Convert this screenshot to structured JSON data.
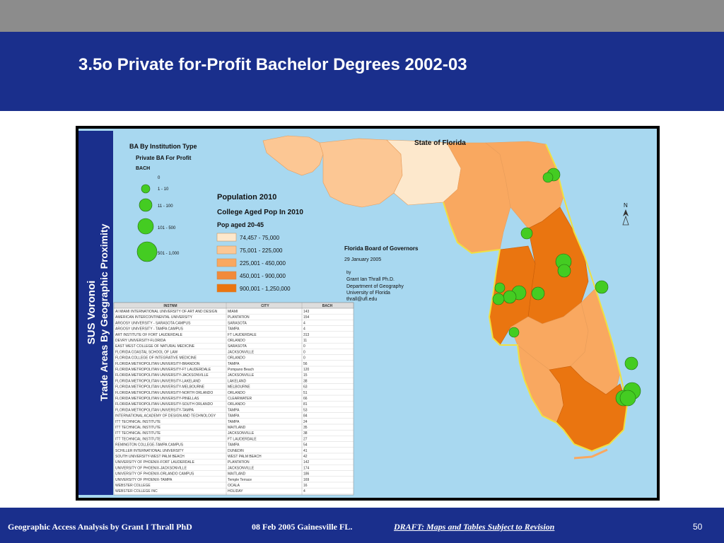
{
  "slide": {
    "title": "3.5o Private for-Profit Bachelor Degrees 2002-03",
    "page_number": "50"
  },
  "footer": {
    "left": "Geographic Access Analysis by Grant I Thrall PhD",
    "date": "08 Feb 2005  Gainesville FL.",
    "draft": "DRAFT:  Maps and Tables Subject to Revision"
  },
  "sidebar": {
    "line1": "SUS Voronoi",
    "line2": "Trade Areas By Geographic Proximity"
  },
  "map": {
    "state_label": "State of Florida",
    "north_arrow": "N",
    "ocean_color": "#a8d8f0",
    "legend_ba": {
      "title": "BA By Institution Type",
      "subtitle": "Private BA For Profit",
      "field": "BACH",
      "classes": [
        "0",
        "1 - 10",
        "11 - 100",
        "101 - 500",
        "501 - 1,000"
      ],
      "symbol_color": "#44cc22"
    },
    "legend_pop": {
      "title": "Population 2010",
      "subtitle": "College Aged Pop In 2010",
      "field": "Pop aged 20-45",
      "classes": [
        {
          "label": "74,457 - 75,000",
          "color": "#fde8cc"
        },
        {
          "label": "75,001 - 225,000",
          "color": "#fcc794"
        },
        {
          "label": "225,001 - 450,000",
          "color": "#f9a860"
        },
        {
          "label": "450,001 - 900,000",
          "color": "#f28a3a"
        },
        {
          "label": "900,001 - 1,250,000",
          "color": "#ea7510"
        }
      ]
    },
    "credits": {
      "org": "Florida Board of Governors",
      "date": "29 January 2005",
      "by": "by",
      "author": "Grant Ian Thrall Ph.D.",
      "dept": "Department of Geography",
      "univ": "University of Florida",
      "email": "thrall@ufl.edu"
    },
    "table": {
      "headers": [
        "INSTNM",
        "CITY",
        "BACH"
      ],
      "rows": [
        [
          "AI MIAMI INTERNATIONAL UNIVERSITY OF ART AND DESIGN",
          "MIAMI",
          "143"
        ],
        [
          "AMERICAN INTERCONTINENTAL UNIVERSITY",
          "PLANTATION",
          "154"
        ],
        [
          "ARGOSY UNIVERSITY - SARASOTA CAMPUS",
          "SARASOTA",
          "4"
        ],
        [
          "ARGOSY UNIVERSITY - TAMPA CAMPUS",
          "TAMPA",
          "4"
        ],
        [
          "ART INSTITUTE OF FORT LAUDERDALE",
          "FT LAUDERDALE",
          "313"
        ],
        [
          "DEVRY UNIVERSITY-FLORIDA",
          "ORLANDO",
          "11"
        ],
        [
          "EAST WEST COLLEGE OF NATURAL MEDICINE",
          "SARASOTA",
          "0"
        ],
        [
          "FLORIDA COASTAL SCHOOL OF LAW",
          "JACKSONVILLE",
          "0"
        ],
        [
          "FLORIDA COLLEGE OF INTEGRATIVE MEDICINE",
          "ORLANDO",
          "0"
        ],
        [
          "FLORIDA METROPOLITAN UNIVERSITY-BRANDON",
          "TAMPA",
          "56"
        ],
        [
          "FLORIDA METROPOLITAN UNIVERSITY-FT LAUDERDALE",
          "Pompano Beach",
          "120"
        ],
        [
          "FLORIDA METROPOLITAN UNIVERSITY-JACKSONVILLE",
          "JACKSONVILLE",
          "15"
        ],
        [
          "FLORIDA METROPOLITAN UNIVERSITY-LAKELAND",
          "LAKELAND",
          "38"
        ],
        [
          "FLORIDA METROPOLITAN UNIVERSITY-MELBOURNE",
          "MELBOURNE",
          "63"
        ],
        [
          "FLORIDA METROPOLITAN UNIVERSITY-NORTH ORLANDO",
          "ORLANDO",
          "51"
        ],
        [
          "FLORIDA METROPOLITAN UNIVERSITY-PINELLAS",
          "CLEARWATER",
          "66"
        ],
        [
          "FLORIDA METROPOLITAN UNIVERSITY-SOUTH ORLANDO",
          "ORLANDO",
          "81"
        ],
        [
          "FLORIDA METROPOLITAN UNIVERSITY-TAMPA",
          "TAMPA",
          "53"
        ],
        [
          "INTERNATIONAL ACADEMY OF DESIGN AND TECHNOLOGY",
          "TAMPA",
          "84"
        ],
        [
          "ITT TECHNICAL INSTITUTE",
          "TAMPA",
          "24"
        ],
        [
          "ITT TECHNICAL INSTITUTE",
          "MAITLAND",
          "35"
        ],
        [
          "ITT TECHNICAL INSTITUTE",
          "JACKSONVILLE",
          "38"
        ],
        [
          "ITT TECHNICAL INSTITUTE",
          "FT LAUDERDALE",
          "27"
        ],
        [
          "REMINGTON COLLEGE-TAMPA CAMPUS",
          "TAMPA",
          "54"
        ],
        [
          "SCHILLER INTERNATIONAL UNIVERSITY",
          "DUNEDIN",
          "41"
        ],
        [
          "SOUTH UNIVERSITY-WEST PALM BEACH",
          "WEST PALM BEACH",
          "42"
        ],
        [
          "UNIVERSITY OF PHOENIX-FORT LAUDERDALE",
          "PLANTATION",
          "142"
        ],
        [
          "UNIVERSITY OF PHOENIX-JACKSONVILLE",
          "JACKSONVILLE",
          "174"
        ],
        [
          "UNIVERSITY OF PHOENIX-ORLANDO CAMPUS",
          "MAITLAND",
          "186"
        ],
        [
          "UNIVERSITY OF PHOENIX-TAMPA",
          "Temple Terrace",
          "169"
        ],
        [
          "WEBSTER COLLEGE",
          "OCALA",
          "16"
        ],
        [
          "WEBSTER COLLEGE INC",
          "HOLIDAY",
          "4"
        ]
      ]
    }
  }
}
